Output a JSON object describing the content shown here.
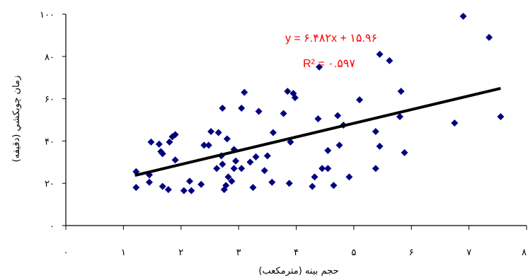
{
  "chart_data": {
    "type": "scatter",
    "title": "",
    "xlabel": "حجم بينه (مترمكعب)",
    "ylabel": "زمان چوبكشي (دقيقه)",
    "xlim": [
      0,
      8
    ],
    "ylim": [
      0,
      100
    ],
    "x_ticks": [
      0,
      1,
      2,
      3,
      4,
      5,
      6,
      7,
      8
    ],
    "x_tick_labels": [
      "۰",
      "۱",
      "۲",
      "۳",
      "۴",
      "۵",
      "۶",
      "۷",
      "۸"
    ],
    "y_ticks": [
      0,
      20,
      40,
      60,
      80,
      100
    ],
    "y_tick_labels": [
      "۰",
      "۲۰",
      "۴۰",
      "۶۰",
      "۸۰",
      "۱۰۰"
    ],
    "grid": false,
    "marker": "diamond",
    "marker_color": "#000080",
    "trendline": {
      "type": "linear",
      "slope": 6.482,
      "intercept": 15.96,
      "x_range": [
        1.2,
        7.55
      ],
      "color": "#000000",
      "equation_label": "y = ۶.۴۸۲x + ۱۵.۹۶",
      "r2_label": "R² = ۰.۵۹۷",
      "label_color": "#ff0000"
    },
    "points": [
      [
        1.22,
        25.5
      ],
      [
        1.22,
        18
      ],
      [
        1.45,
        20.5
      ],
      [
        1.45,
        24
      ],
      [
        1.48,
        39.5
      ],
      [
        1.62,
        38.5
      ],
      [
        1.65,
        35
      ],
      [
        1.68,
        34
      ],
      [
        1.68,
        18.5
      ],
      [
        1.78,
        17
      ],
      [
        1.8,
        39.5
      ],
      [
        1.85,
        42
      ],
      [
        1.9,
        43
      ],
      [
        1.9,
        31
      ],
      [
        2.05,
        16.5
      ],
      [
        2.15,
        21
      ],
      [
        2.18,
        16.5
      ],
      [
        2.35,
        19.5
      ],
      [
        2.4,
        38
      ],
      [
        2.48,
        38
      ],
      [
        2.52,
        44.5
      ],
      [
        2.62,
        27
      ],
      [
        2.65,
        44
      ],
      [
        2.7,
        33
      ],
      [
        2.72,
        29
      ],
      [
        2.72,
        55.5
      ],
      [
        2.75,
        17
      ],
      [
        2.78,
        19
      ],
      [
        2.8,
        41
      ],
      [
        2.82,
        23
      ],
      [
        2.88,
        21
      ],
      [
        2.92,
        27
      ],
      [
        2.92,
        36
      ],
      [
        2.95,
        30.5
      ],
      [
        3.05,
        27
      ],
      [
        3.05,
        55.5
      ],
      [
        3.1,
        63
      ],
      [
        3.2,
        30
      ],
      [
        3.25,
        18
      ],
      [
        3.3,
        32.5
      ],
      [
        3.35,
        54
      ],
      [
        3.45,
        26
      ],
      [
        3.5,
        33
      ],
      [
        3.58,
        20.5
      ],
      [
        3.6,
        44
      ],
      [
        3.78,
        53
      ],
      [
        3.85,
        63.5
      ],
      [
        3.88,
        20
      ],
      [
        3.9,
        39.5
      ],
      [
        3.95,
        62.5
      ],
      [
        3.98,
        60.5
      ],
      [
        4.28,
        18.5
      ],
      [
        4.32,
        23
      ],
      [
        4.38,
        50.5
      ],
      [
        4.4,
        75
      ],
      [
        4.45,
        27
      ],
      [
        4.55,
        27
      ],
      [
        4.55,
        35.5
      ],
      [
        4.65,
        19
      ],
      [
        4.72,
        52
      ],
      [
        4.75,
        38
      ],
      [
        4.82,
        47.5
      ],
      [
        4.92,
        23
      ],
      [
        5.1,
        59.5
      ],
      [
        5.38,
        27
      ],
      [
        5.38,
        44.5
      ],
      [
        5.45,
        37.5
      ],
      [
        5.45,
        81
      ],
      [
        5.62,
        78
      ],
      [
        5.8,
        51.5
      ],
      [
        5.82,
        63.5
      ],
      [
        5.88,
        34.5
      ],
      [
        6.75,
        48.5
      ],
      [
        6.9,
        99
      ],
      [
        7.35,
        89
      ],
      [
        7.55,
        51.5
      ]
    ]
  }
}
